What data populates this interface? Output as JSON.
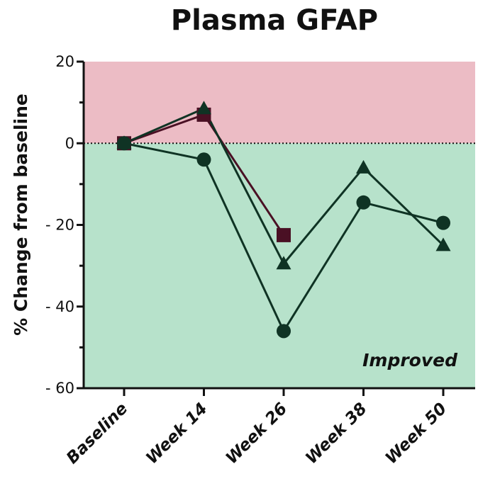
{
  "chart_data": {
    "type": "line",
    "title": "Plasma GFAP",
    "xlabel": "",
    "ylabel": "% Change from baseline",
    "categories": [
      "Baseline",
      "Week 14",
      "Week 26",
      "Week 38",
      "Week 50"
    ],
    "ylim": [
      -60,
      20
    ],
    "yticks": [
      -60,
      -40,
      -20,
      0,
      20
    ],
    "ytick_labels": [
      "- 60",
      "- 40",
      "- 20",
      "0",
      "20"
    ],
    "regions": [
      {
        "from": 0,
        "to": 20,
        "color": "#ecbcc5"
      },
      {
        "from": -60,
        "to": 0,
        "color": "#b7e2cb"
      }
    ],
    "reference_line": {
      "y": 0,
      "style": "dotted"
    },
    "annotation": "Improved",
    "series": [
      {
        "marker": "square",
        "line_color": "#4a1024",
        "marker_color": "#4a1024",
        "values": [
          0,
          7,
          -22.5,
          null,
          null
        ]
      },
      {
        "marker": "triangle",
        "line_color": "#0f3324",
        "marker_color": "#0f3324",
        "values": [
          0,
          8.5,
          -29.5,
          -6,
          -25
        ]
      },
      {
        "marker": "circle",
        "line_color": "#0f3324",
        "marker_color": "#0f3324",
        "values": [
          0,
          -4,
          -46,
          -14.5,
          -19.5
        ]
      }
    ],
    "grid": false,
    "legend": "none"
  }
}
